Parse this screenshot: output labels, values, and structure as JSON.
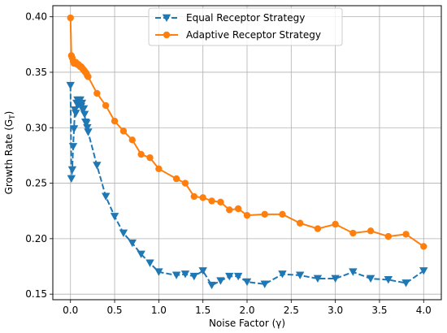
{
  "chart_data": {
    "type": "line",
    "title": "",
    "xlabel": "Noise Factor (γ)",
    "ylabel": "Growth Rate (G",
    "ylabel_sub": "T",
    "ylabel_end": ")",
    "xlim": [
      -0.2,
      4.2
    ],
    "ylim": [
      0.145,
      0.41
    ],
    "xticks": [
      "0.0",
      "0.5",
      "1.0",
      "1.5",
      "2.0",
      "2.5",
      "3.0",
      "3.5",
      "4.0"
    ],
    "yticks": [
      "0.15",
      "0.20",
      "0.25",
      "0.30",
      "0.35",
      "0.40"
    ],
    "grid": true,
    "legend_position": "top-center",
    "series": [
      {
        "name": "Equal Receptor Strategy",
        "color": "#1f77b4",
        "line_style": "dashed",
        "marker": "triangle-down",
        "x": [
          0.0,
          0.01,
          0.02,
          0.03,
          0.04,
          0.05,
          0.06,
          0.07,
          0.08,
          0.09,
          0.1,
          0.11,
          0.12,
          0.13,
          0.14,
          0.15,
          0.16,
          0.17,
          0.18,
          0.19,
          0.2,
          0.3,
          0.4,
          0.5,
          0.6,
          0.7,
          0.8,
          0.9,
          1.0,
          1.2,
          1.3,
          1.4,
          1.5,
          1.6,
          1.7,
          1.8,
          1.9,
          2.0,
          2.2,
          2.4,
          2.6,
          2.8,
          3.0,
          3.2,
          3.4,
          3.6,
          3.8,
          4.0
        ],
        "y": [
          0.338,
          0.254,
          0.262,
          0.283,
          0.299,
          0.316,
          0.313,
          0.322,
          0.325,
          0.321,
          0.324,
          0.325,
          0.319,
          0.322,
          0.316,
          0.317,
          0.312,
          0.305,
          0.304,
          0.3,
          0.296,
          0.266,
          0.238,
          0.22,
          0.205,
          0.196,
          0.186,
          0.178,
          0.17,
          0.167,
          0.168,
          0.166,
          0.171,
          0.158,
          0.162,
          0.166,
          0.166,
          0.161,
          0.159,
          0.168,
          0.167,
          0.164,
          0.164,
          0.17,
          0.164,
          0.163,
          0.16,
          0.171
        ]
      },
      {
        "name": "Adaptive Receptor Strategy",
        "color": "#ff7f0e",
        "line_style": "solid",
        "marker": "circle",
        "x": [
          0.0,
          0.01,
          0.02,
          0.03,
          0.04,
          0.05,
          0.06,
          0.07,
          0.08,
          0.09,
          0.1,
          0.11,
          0.12,
          0.13,
          0.14,
          0.15,
          0.16,
          0.17,
          0.18,
          0.19,
          0.2,
          0.3,
          0.4,
          0.5,
          0.6,
          0.7,
          0.8,
          0.9,
          1.0,
          1.2,
          1.3,
          1.4,
          1.5,
          1.6,
          1.7,
          1.8,
          1.9,
          2.0,
          2.2,
          2.4,
          2.6,
          2.8,
          3.0,
          3.2,
          3.4,
          3.6,
          3.8,
          4.0
        ],
        "y": [
          0.399,
          0.365,
          0.363,
          0.36,
          0.358,
          0.358,
          0.359,
          0.358,
          0.357,
          0.357,
          0.356,
          0.355,
          0.355,
          0.354,
          0.353,
          0.352,
          0.351,
          0.35,
          0.349,
          0.347,
          0.346,
          0.331,
          0.32,
          0.306,
          0.297,
          0.289,
          0.276,
          0.273,
          0.263,
          0.254,
          0.25,
          0.238,
          0.237,
          0.234,
          0.233,
          0.226,
          0.227,
          0.221,
          0.222,
          0.222,
          0.214,
          0.209,
          0.213,
          0.205,
          0.207,
          0.202,
          0.204,
          0.193
        ]
      }
    ]
  }
}
